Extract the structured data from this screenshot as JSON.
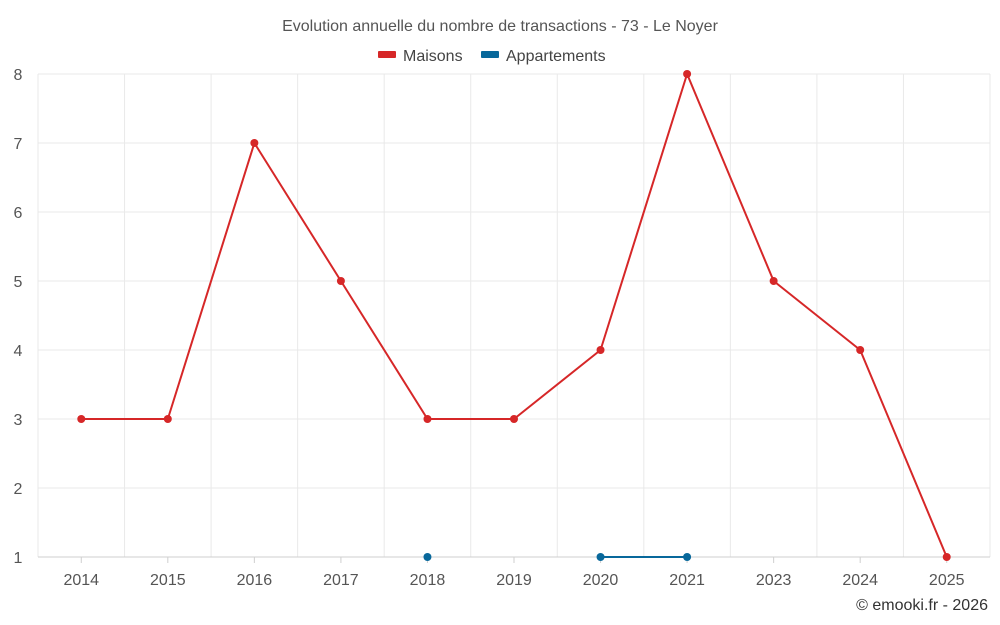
{
  "chart_data": {
    "type": "line",
    "title": "Evolution annuelle du nombre de transactions - 73 - Le Noyer",
    "categories": [
      "2014",
      "2015",
      "2016",
      "2017",
      "2018",
      "2019",
      "2020",
      "2021",
      "2023",
      "2024",
      "2025"
    ],
    "series": [
      {
        "name": "Maisons",
        "color": "#d62728",
        "values": [
          3,
          3,
          7,
          5,
          3,
          3,
          4,
          8,
          5,
          4,
          1
        ]
      },
      {
        "name": "Appartements",
        "color": "#08689b",
        "values": [
          null,
          null,
          null,
          null,
          1,
          null,
          1,
          1,
          null,
          null,
          null
        ]
      }
    ],
    "ylim": [
      1,
      8
    ],
    "yticks": [
      "1",
      "2",
      "3",
      "4",
      "5",
      "6",
      "7",
      "8"
    ],
    "xlabel": "",
    "ylabel": "",
    "grid": true,
    "legend_position": "top-center"
  },
  "credit": "© emooki.fr - 2026"
}
